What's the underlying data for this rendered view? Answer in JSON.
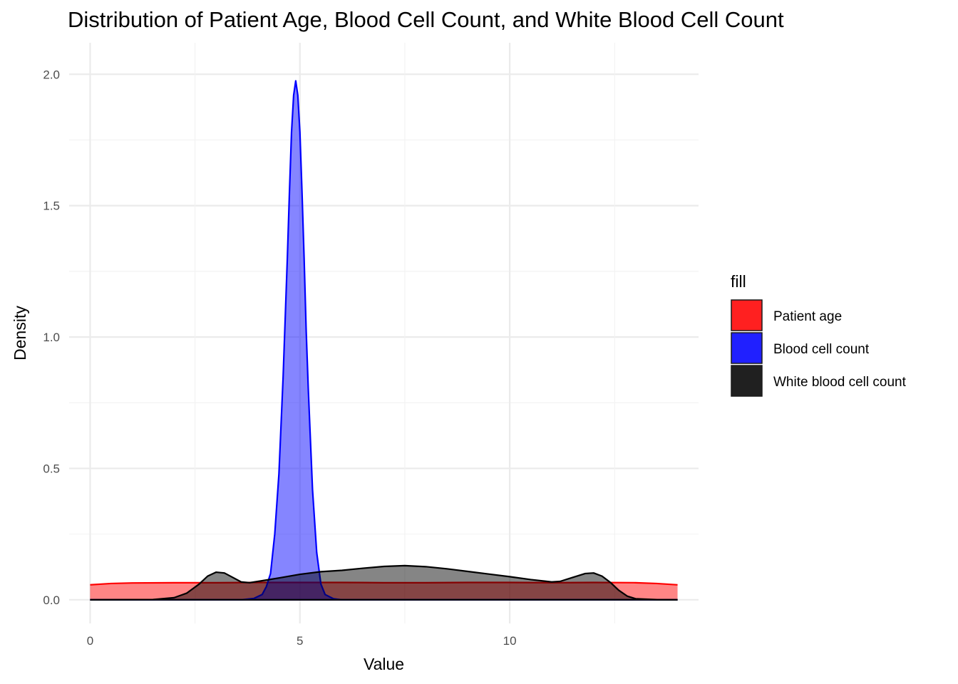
{
  "chart_data": {
    "type": "area",
    "title": "Distribution of Patient Age, Blood Cell Count, and White Blood Cell Count",
    "xlabel": "Value",
    "ylabel": "Density",
    "xlim": [
      -0.5,
      14.5
    ],
    "ylim": [
      -0.09,
      2.12
    ],
    "x_ticks": [
      0,
      5,
      10
    ],
    "x_tick_labels": [
      "0",
      "5",
      "10"
    ],
    "y_ticks": [
      0.0,
      0.5,
      1.0,
      1.5,
      2.0
    ],
    "y_tick_labels": [
      "0.0",
      "0.5",
      "1.0",
      "1.5",
      "2.0"
    ],
    "grid": true,
    "legend": {
      "title": "fill",
      "position": "right",
      "entries": [
        {
          "label": "Patient age",
          "color": "#ff2020"
        },
        {
          "label": "Blood cell count",
          "color": "#2020ff"
        },
        {
          "label": "White blood cell count",
          "color": "#202020"
        }
      ]
    },
    "series": [
      {
        "name": "Patient age",
        "fill": "#ff0000",
        "stroke": "#ff0000",
        "x": [
          0,
          0.5,
          1,
          2,
          3,
          4,
          5,
          6,
          7,
          8,
          9,
          10,
          11,
          12,
          13,
          13.5,
          14
        ],
        "y": [
          0.057,
          0.062,
          0.064,
          0.065,
          0.065,
          0.066,
          0.066,
          0.066,
          0.065,
          0.065,
          0.066,
          0.066,
          0.065,
          0.066,
          0.065,
          0.062,
          0.057
        ]
      },
      {
        "name": "Blood cell count",
        "fill": "#0000ff",
        "stroke": "#0000ff",
        "x": [
          0,
          3.6,
          3.9,
          4.1,
          4.2,
          4.3,
          4.4,
          4.5,
          4.6,
          4.7,
          4.75,
          4.8,
          4.85,
          4.9,
          4.95,
          5.0,
          5.05,
          5.1,
          5.15,
          5.2,
          5.3,
          5.4,
          5.5,
          5.6,
          5.8,
          6.0,
          14
        ],
        "y": [
          0.0,
          0.0,
          0.005,
          0.02,
          0.05,
          0.1,
          0.25,
          0.48,
          0.85,
          1.3,
          1.55,
          1.78,
          1.92,
          1.975,
          1.92,
          1.78,
          1.55,
          1.3,
          1.02,
          0.8,
          0.42,
          0.18,
          0.06,
          0.02,
          0.004,
          0.0,
          0.0
        ]
      },
      {
        "name": "White blood cell count",
        "fill": "#000000",
        "stroke": "#000000",
        "x": [
          0,
          1.5,
          2.0,
          2.3,
          2.6,
          2.8,
          3.0,
          3.2,
          3.4,
          3.6,
          3.8,
          4.0,
          4.5,
          5.0,
          5.5,
          6.0,
          6.5,
          7.0,
          7.5,
          8.0,
          8.5,
          9.0,
          9.5,
          10.0,
          10.5,
          11.0,
          11.2,
          11.5,
          11.8,
          12.0,
          12.2,
          12.4,
          12.6,
          12.8,
          13.0,
          13.5,
          14.0
        ],
        "y": [
          0.0,
          0.001,
          0.008,
          0.025,
          0.06,
          0.09,
          0.105,
          0.102,
          0.085,
          0.068,
          0.065,
          0.07,
          0.083,
          0.097,
          0.107,
          0.112,
          0.12,
          0.127,
          0.13,
          0.126,
          0.118,
          0.108,
          0.098,
          0.088,
          0.077,
          0.068,
          0.07,
          0.085,
          0.1,
          0.102,
          0.09,
          0.066,
          0.036,
          0.014,
          0.004,
          0.0005,
          0.0
        ]
      }
    ]
  }
}
